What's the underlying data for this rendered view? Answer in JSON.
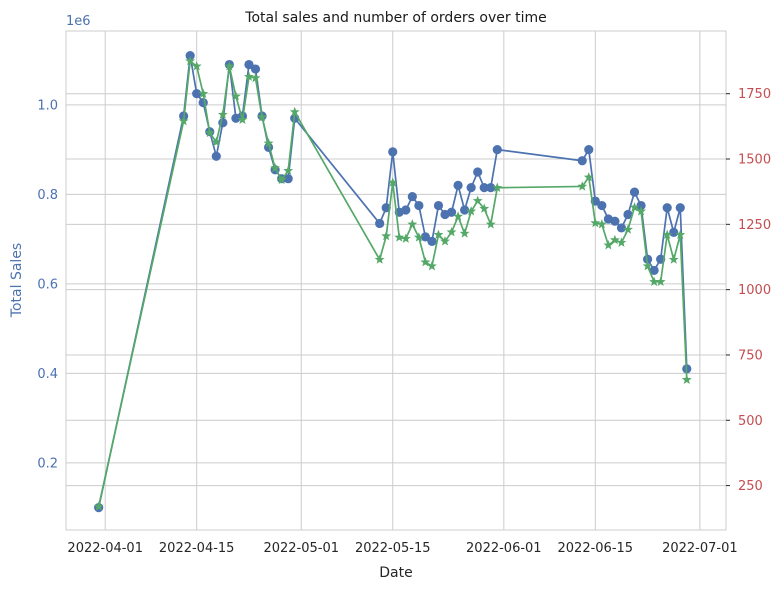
{
  "chart_data": {
    "type": "line",
    "title": "Total sales and number of orders over time",
    "xlabel": "Date",
    "ylabel_left": "Total Sales",
    "ylabel_right": "",
    "left_offset_label": "1e6",
    "grid": true,
    "colors": {
      "sales": "#4c72b0",
      "orders": "#55a868",
      "right_axis": "#c44e52",
      "grid": "#cccccc",
      "text": "#262626"
    },
    "x_range": [
      "2022-03-26",
      "2022-07-05"
    ],
    "x_ticks": [
      "2022-04-01",
      "2022-04-15",
      "2022-05-01",
      "2022-05-15",
      "2022-06-01",
      "2022-06-15",
      "2022-07-01"
    ],
    "left_ylim": [
      0.05,
      1.165
    ],
    "left_ticks": [
      "0.2",
      "0.4",
      "0.6",
      "0.8",
      "1.0"
    ],
    "left_tick_values": [
      0.2,
      0.4,
      0.6,
      0.8,
      1.0
    ],
    "right_ylim": [
      80,
      1990
    ],
    "right_ticks": [
      "250",
      "500",
      "750",
      "1000",
      "1250",
      "1500",
      "1750"
    ],
    "right_tick_values": [
      250,
      500,
      750,
      1000,
      1250,
      1500,
      1750
    ],
    "series": [
      {
        "name": "",
        "axis": "left",
        "marker": "circle",
        "points": [
          [
            "2022-03-31",
            0.1
          ],
          [
            "2022-04-13",
            0.975
          ],
          [
            "2022-04-14",
            1.11
          ],
          [
            "2022-04-15",
            1.025
          ],
          [
            "2022-04-16",
            1.005
          ],
          [
            "2022-04-17",
            0.94
          ],
          [
            "2022-04-18",
            0.885
          ],
          [
            "2022-04-19",
            0.96
          ],
          [
            "2022-04-20",
            1.09
          ],
          [
            "2022-04-21",
            0.97
          ],
          [
            "2022-04-22",
            0.975
          ],
          [
            "2022-04-23",
            1.09
          ],
          [
            "2022-04-24",
            1.08
          ],
          [
            "2022-04-25",
            0.975
          ],
          [
            "2022-04-26",
            0.905
          ],
          [
            "2022-04-27",
            0.855
          ],
          [
            "2022-04-28",
            0.835
          ],
          [
            "2022-04-29",
            0.835
          ],
          [
            "2022-04-30",
            0.97
          ],
          [
            "2022-05-13",
            0.735
          ],
          [
            "2022-05-14",
            0.77
          ],
          [
            "2022-05-15",
            0.895
          ],
          [
            "2022-05-16",
            0.76
          ],
          [
            "2022-05-17",
            0.765
          ],
          [
            "2022-05-18",
            0.795
          ],
          [
            "2022-05-19",
            0.775
          ],
          [
            "2022-05-20",
            0.705
          ],
          [
            "2022-05-21",
            0.695
          ],
          [
            "2022-05-22",
            0.775
          ],
          [
            "2022-05-23",
            0.755
          ],
          [
            "2022-05-24",
            0.76
          ],
          [
            "2022-05-25",
            0.82
          ],
          [
            "2022-05-26",
            0.765
          ],
          [
            "2022-05-27",
            0.815
          ],
          [
            "2022-05-28",
            0.85
          ],
          [
            "2022-05-29",
            0.815
          ],
          [
            "2022-05-30",
            0.815
          ],
          [
            "2022-05-31",
            0.9
          ],
          [
            "2022-06-13",
            0.875
          ],
          [
            "2022-06-14",
            0.9
          ],
          [
            "2022-06-15",
            0.785
          ],
          [
            "2022-06-16",
            0.775
          ],
          [
            "2022-06-17",
            0.745
          ],
          [
            "2022-06-18",
            0.74
          ],
          [
            "2022-06-19",
            0.725
          ],
          [
            "2022-06-20",
            0.755
          ],
          [
            "2022-06-21",
            0.805
          ],
          [
            "2022-06-22",
            0.775
          ],
          [
            "2022-06-23",
            0.655
          ],
          [
            "2022-06-24",
            0.63
          ],
          [
            "2022-06-25",
            0.655
          ],
          [
            "2022-06-26",
            0.77
          ],
          [
            "2022-06-27",
            0.715
          ],
          [
            "2022-06-28",
            0.77
          ],
          [
            "2022-06-29",
            0.41
          ]
        ]
      },
      {
        "name": "",
        "axis": "right",
        "marker": "star",
        "points": [
          [
            "2022-03-31",
            170
          ],
          [
            "2022-04-13",
            1645
          ],
          [
            "2022-04-14",
            1875
          ],
          [
            "2022-04-15",
            1855
          ],
          [
            "2022-04-16",
            1750
          ],
          [
            "2022-04-17",
            1600
          ],
          [
            "2022-04-18",
            1565
          ],
          [
            "2022-04-19",
            1670
          ],
          [
            "2022-04-20",
            1855
          ],
          [
            "2022-04-21",
            1740
          ],
          [
            "2022-04-22",
            1650
          ],
          [
            "2022-04-23",
            1815
          ],
          [
            "2022-04-24",
            1810
          ],
          [
            "2022-04-25",
            1660
          ],
          [
            "2022-04-26",
            1560
          ],
          [
            "2022-04-27",
            1465
          ],
          [
            "2022-04-28",
            1420
          ],
          [
            "2022-04-29",
            1455
          ],
          [
            "2022-04-30",
            1680
          ],
          [
            "2022-05-13",
            1115
          ],
          [
            "2022-05-14",
            1205
          ],
          [
            "2022-05-15",
            1410
          ],
          [
            "2022-05-16",
            1200
          ],
          [
            "2022-05-17",
            1195
          ],
          [
            "2022-05-18",
            1250
          ],
          [
            "2022-05-19",
            1200
          ],
          [
            "2022-05-20",
            1105
          ],
          [
            "2022-05-21",
            1090
          ],
          [
            "2022-05-22",
            1210
          ],
          [
            "2022-05-23",
            1185
          ],
          [
            "2022-05-24",
            1220
          ],
          [
            "2022-05-25",
            1280
          ],
          [
            "2022-05-26",
            1215
          ],
          [
            "2022-05-27",
            1300
          ],
          [
            "2022-05-28",
            1340
          ],
          [
            "2022-05-29",
            1310
          ],
          [
            "2022-05-30",
            1250
          ],
          [
            "2022-05-31",
            1390
          ],
          [
            "2022-06-13",
            1395
          ],
          [
            "2022-06-14",
            1430
          ],
          [
            "2022-06-15",
            1255
          ],
          [
            "2022-06-16",
            1250
          ],
          [
            "2022-06-17",
            1170
          ],
          [
            "2022-06-18",
            1190
          ],
          [
            "2022-06-19",
            1180
          ],
          [
            "2022-06-20",
            1230
          ],
          [
            "2022-06-21",
            1315
          ],
          [
            "2022-06-22",
            1300
          ],
          [
            "2022-06-23",
            1090
          ],
          [
            "2022-06-24",
            1030
          ],
          [
            "2022-06-25",
            1030
          ],
          [
            "2022-06-26",
            1210
          ],
          [
            "2022-06-27",
            1115
          ],
          [
            "2022-06-28",
            1210
          ],
          [
            "2022-06-29",
            655
          ]
        ]
      }
    ]
  }
}
